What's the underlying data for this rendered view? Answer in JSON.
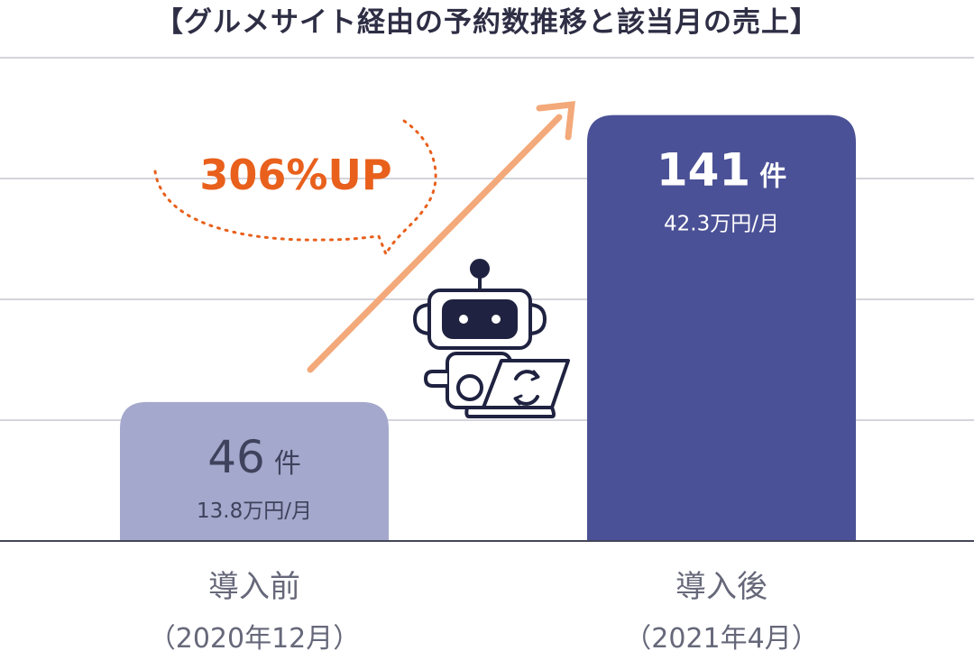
{
  "chart_data": {
    "type": "bar",
    "title": "【グルメサイト経由の予約数推移と該当月の売上】",
    "categories": [
      "導入前",
      "導入後"
    ],
    "category_sublabels": [
      "（2020年12月）",
      "（2021年4月）"
    ],
    "values": [
      46,
      141
    ],
    "value_unit": "件",
    "sales_labels": [
      "13.8万円/月",
      "42.3万円/月"
    ],
    "sales_values_man_yen": [
      13.8,
      42.3
    ],
    "ylim": [
      0,
      160
    ],
    "grid": true,
    "annotation": "306%UP",
    "colors": {
      "before_bar": "#a4a8cc",
      "after_bar": "#4b5196",
      "arrow": "#f3a97a",
      "annotation": "#e8601c",
      "gridline": "#d4d4dc",
      "baseline": "#44465a",
      "dark_text": "#3f425c",
      "light_text": "#ffffff",
      "category_text": "#66687a"
    },
    "icon": "robot-with-laptop-icon"
  }
}
